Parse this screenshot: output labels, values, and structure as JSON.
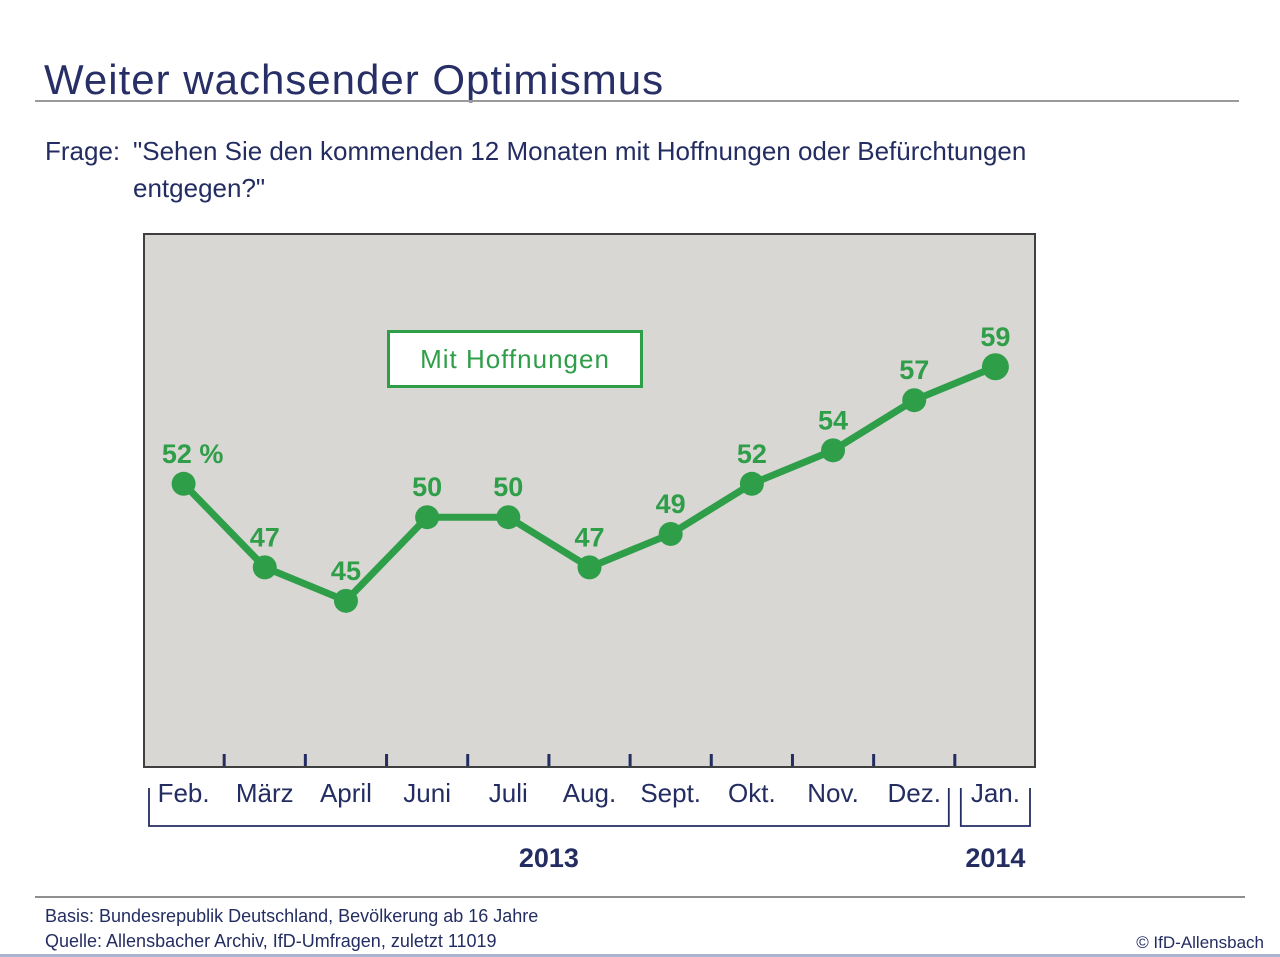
{
  "page": {
    "title": "Weiter wachsender Optimismus",
    "colors": {
      "navy": "#242d62",
      "green": "#2f9e49",
      "plot_bg": "#d8d7d4",
      "plot_border": "#3f3f3f",
      "divider_gray": "#9a9a9a",
      "bottom_line_blue": "#a9b4cf"
    }
  },
  "question": {
    "prefix": "Frage:",
    "lines": [
      "\"Sehen Sie den kommenden 12 Monaten mit Hoffnungen oder Befürchtungen",
      "entgegen?\""
    ]
  },
  "chart_data": {
    "type": "line",
    "title": "Weiter wachsender Optimismus",
    "legend": "Mit Hoffnungen",
    "legend_position": "top-center-box",
    "grid": false,
    "unit": "%",
    "categories": [
      "Feb.",
      "März",
      "April",
      "Juni",
      "Juli",
      "Aug.",
      "Sept.",
      "Okt.",
      "Nov.",
      "Dez.",
      "Jan."
    ],
    "values": [
      52,
      47,
      45,
      50,
      50,
      47,
      49,
      52,
      54,
      57,
      59
    ],
    "point_labels": [
      "52 %",
      "47",
      "45",
      "50",
      "50",
      "47",
      "49",
      "52",
      "54",
      "57",
      "59"
    ],
    "ylim": [
      35,
      67
    ],
    "year_groups": [
      {
        "label": "2013",
        "from": 0,
        "to": 9
      },
      {
        "label": "2014",
        "from": 10,
        "to": 10
      }
    ],
    "line_color": "#2f9e49",
    "plot_bg": "#d8d7d4"
  },
  "footer": {
    "basis": "Basis: Bundesrepublik Deutschland, Bevölkerung ab 16 Jahre",
    "quelle": "Quelle: Allensbacher Archiv, IfD-Umfragen, zuletzt 11019",
    "copyright": "© IfD-Allensbach"
  }
}
